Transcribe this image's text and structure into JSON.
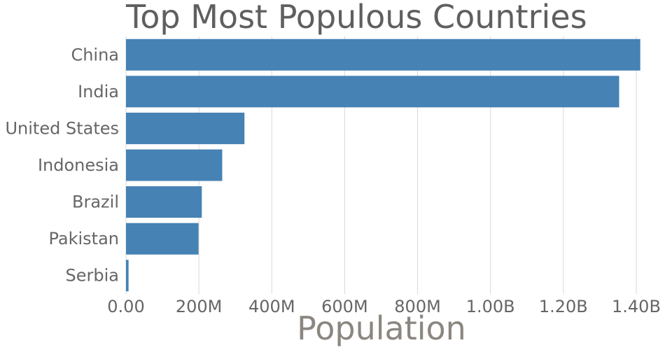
{
  "chart_data": {
    "type": "bar",
    "orientation": "horizontal",
    "title": "Top Most Populous Countries",
    "xlabel": "Population",
    "ylabel": "",
    "categories": [
      "China",
      "India",
      "United States",
      "Indonesia",
      "Brazil",
      "Pakistan",
      "Serbia"
    ],
    "values": [
      1411000000,
      1353000000,
      325000000,
      264000000,
      208000000,
      199000000,
      7000000
    ],
    "xlim": [
      0,
      1450000000
    ],
    "x_ticks": [
      0,
      200000000,
      400000000,
      600000000,
      800000000,
      1000000000,
      1200000000,
      1400000000
    ],
    "x_tick_labels": [
      "0.00",
      "200M",
      "400M",
      "600M",
      "800M",
      "1.00B",
      "1.20B",
      "1.40B"
    ],
    "grid": true,
    "legend": "none",
    "colors": {
      "bar": "#4682b4",
      "grid": "#d9d9d9",
      "title": "#5f5f5f",
      "xlabel": "#8b8680",
      "tick": "#666666"
    }
  }
}
